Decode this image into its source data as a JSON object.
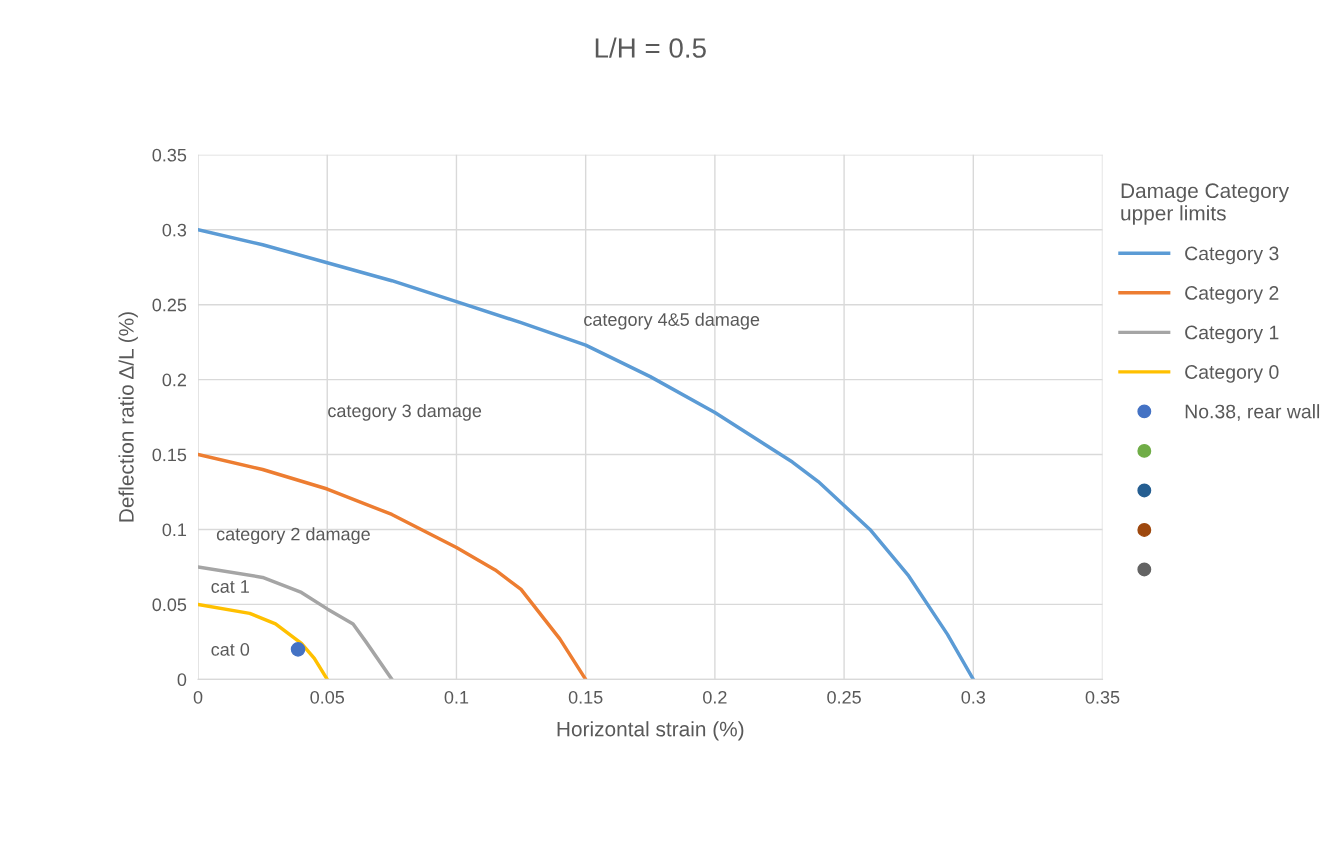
{
  "chart_data": {
    "type": "line",
    "title": "L/H = 0.5",
    "xlabel": "Horizontal strain (%)",
    "ylabel": "Deflection ratio Δ/L (%)",
    "legend_title": "Damage Category\nupper limits",
    "xlim": [
      0,
      0.35
    ],
    "xticks": [
      0,
      0.05,
      0.1,
      0.15,
      0.2,
      0.25,
      0.3,
      0.35
    ],
    "ylim": [
      0,
      0.35
    ],
    "yticks": [
      0,
      0.05,
      0.1,
      0.15,
      0.2,
      0.25,
      0.3,
      0.35
    ],
    "grid": true,
    "legend": "right",
    "marker": "none",
    "line_style": "solid",
    "series": [
      {
        "name": "Category 3",
        "color": "#5b9bd5",
        "x": [
          0,
          0.025,
          0.05,
          0.075,
          0.1,
          0.125,
          0.15,
          0.175,
          0.2,
          0.23,
          0.24,
          0.25,
          0.26,
          0.275,
          0.29,
          0.3
        ],
        "values": [
          0.3,
          0.29,
          0.278,
          0.266,
          0.252,
          0.238,
          0.223,
          0.202,
          0.178,
          0.145,
          0.132,
          0.116,
          0.1,
          0.069,
          0.03,
          0
        ]
      },
      {
        "name": "Category 2",
        "color": "#ed7d31",
        "x": [
          0,
          0.025,
          0.05,
          0.075,
          0.1,
          0.115,
          0.125,
          0.14,
          0.15
        ],
        "values": [
          0.15,
          0.14,
          0.127,
          0.11,
          0.088,
          0.073,
          0.06,
          0.027,
          0
        ]
      },
      {
        "name": "Category 1",
        "color": "#a5a5a5",
        "x": [
          0,
          0.025,
          0.04,
          0.05,
          0.06,
          0.065,
          0.075
        ],
        "values": [
          0.075,
          0.068,
          0.058,
          0.047,
          0.037,
          0.025,
          0
        ]
      },
      {
        "name": "Category 0",
        "color": "#ffc000",
        "x": [
          0,
          0.02,
          0.03,
          0.04,
          0.045,
          0.05
        ],
        "values": [
          0.05,
          0.044,
          0.037,
          0.024,
          0.014,
          0
        ]
      },
      {
        "name": "No.38, rear wall",
        "type": "scatter",
        "marker": "circle",
        "color": "#4472c4",
        "x": [
          0.0387
        ],
        "values": [
          0.02
        ]
      },
      {
        "type": "scatter",
        "marker": "circle",
        "color": "#70ad47"
      },
      {
        "type": "scatter",
        "marker": "circle",
        "color": "#255e91"
      },
      {
        "type": "scatter",
        "marker": "circle",
        "color": "#9e480e"
      },
      {
        "type": "scatter",
        "marker": "circle",
        "color": "#636363"
      }
    ],
    "annotations": [
      "category 4&5 damage",
      "category 3 damage",
      "category 2 damage",
      "cat 1",
      "cat 0"
    ]
  }
}
